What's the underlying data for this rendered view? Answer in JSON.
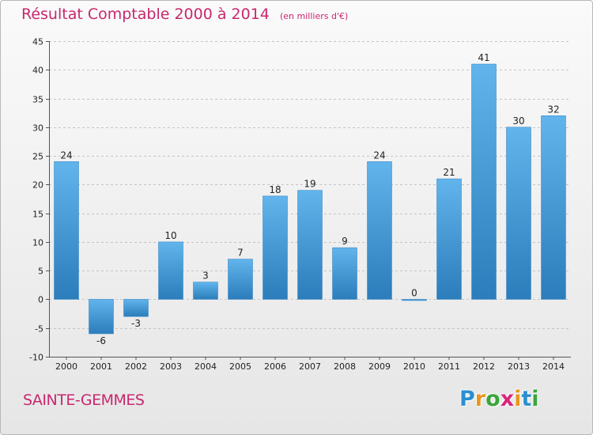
{
  "header": {
    "title": "Résultat Comptable 2000 à 2014",
    "unit": "(en milliers d'€)"
  },
  "footer": {
    "commune": "SAINTE-GEMMES",
    "logo_text": "Proxiti",
    "logo_colors": [
      "#2a8fd0",
      "#e8961e",
      "#3aa53a",
      "#d8267a",
      "#e8961e",
      "#2a8fd0",
      "#3aa53a"
    ]
  },
  "colors": {
    "bar_light": "#62b4ec",
    "bar_dark": "#2b7dbb",
    "title": "#c8286e"
  },
  "chart_data": {
    "type": "bar",
    "title": "Résultat Comptable 2000 à 2014",
    "subtitle": "(en milliers d'€)",
    "xlabel": "",
    "ylabel": "",
    "categories": [
      "2000",
      "2001",
      "2002",
      "2003",
      "2004",
      "2005",
      "2006",
      "2007",
      "2008",
      "2009",
      "2010",
      "2011",
      "2012",
      "2013",
      "2014"
    ],
    "values": [
      24,
      -6,
      -3,
      10,
      3,
      7,
      18,
      19,
      9,
      24,
      0,
      21,
      41,
      30,
      32
    ],
    "ylim": [
      -10,
      45
    ],
    "yticks": [
      -10,
      -5,
      0,
      5,
      10,
      15,
      20,
      25,
      30,
      35,
      40,
      45
    ],
    "grid": "horizontal-dashed"
  }
}
